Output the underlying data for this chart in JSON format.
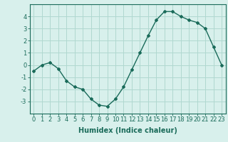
{
  "x": [
    0,
    1,
    2,
    3,
    4,
    5,
    6,
    7,
    8,
    9,
    10,
    11,
    12,
    13,
    14,
    15,
    16,
    17,
    18,
    19,
    20,
    21,
    22,
    23
  ],
  "y": [
    -0.5,
    0.0,
    0.2,
    -0.3,
    -1.3,
    -1.8,
    -2.0,
    -2.8,
    -3.3,
    -3.4,
    -2.8,
    -1.8,
    -0.4,
    1.0,
    2.4,
    3.7,
    4.4,
    4.4,
    4.0,
    3.7,
    3.5,
    3.0,
    1.5,
    0.0
  ],
  "line_color": "#1a6b5a",
  "marker": "D",
  "marker_size": 2,
  "background_color": "#d8f0ec",
  "grid_color": "#b0d8d0",
  "xlabel": "Humidex (Indice chaleur)",
  "ylim": [
    -4,
    5
  ],
  "xlim": [
    -0.5,
    23.5
  ],
  "yticks": [
    -3,
    -2,
    -1,
    0,
    1,
    2,
    3,
    4
  ],
  "xticks": [
    0,
    1,
    2,
    3,
    4,
    5,
    6,
    7,
    8,
    9,
    10,
    11,
    12,
    13,
    14,
    15,
    16,
    17,
    18,
    19,
    20,
    21,
    22,
    23
  ],
  "tick_fontsize": 6,
  "xlabel_fontsize": 7,
  "line_width": 1.0
}
